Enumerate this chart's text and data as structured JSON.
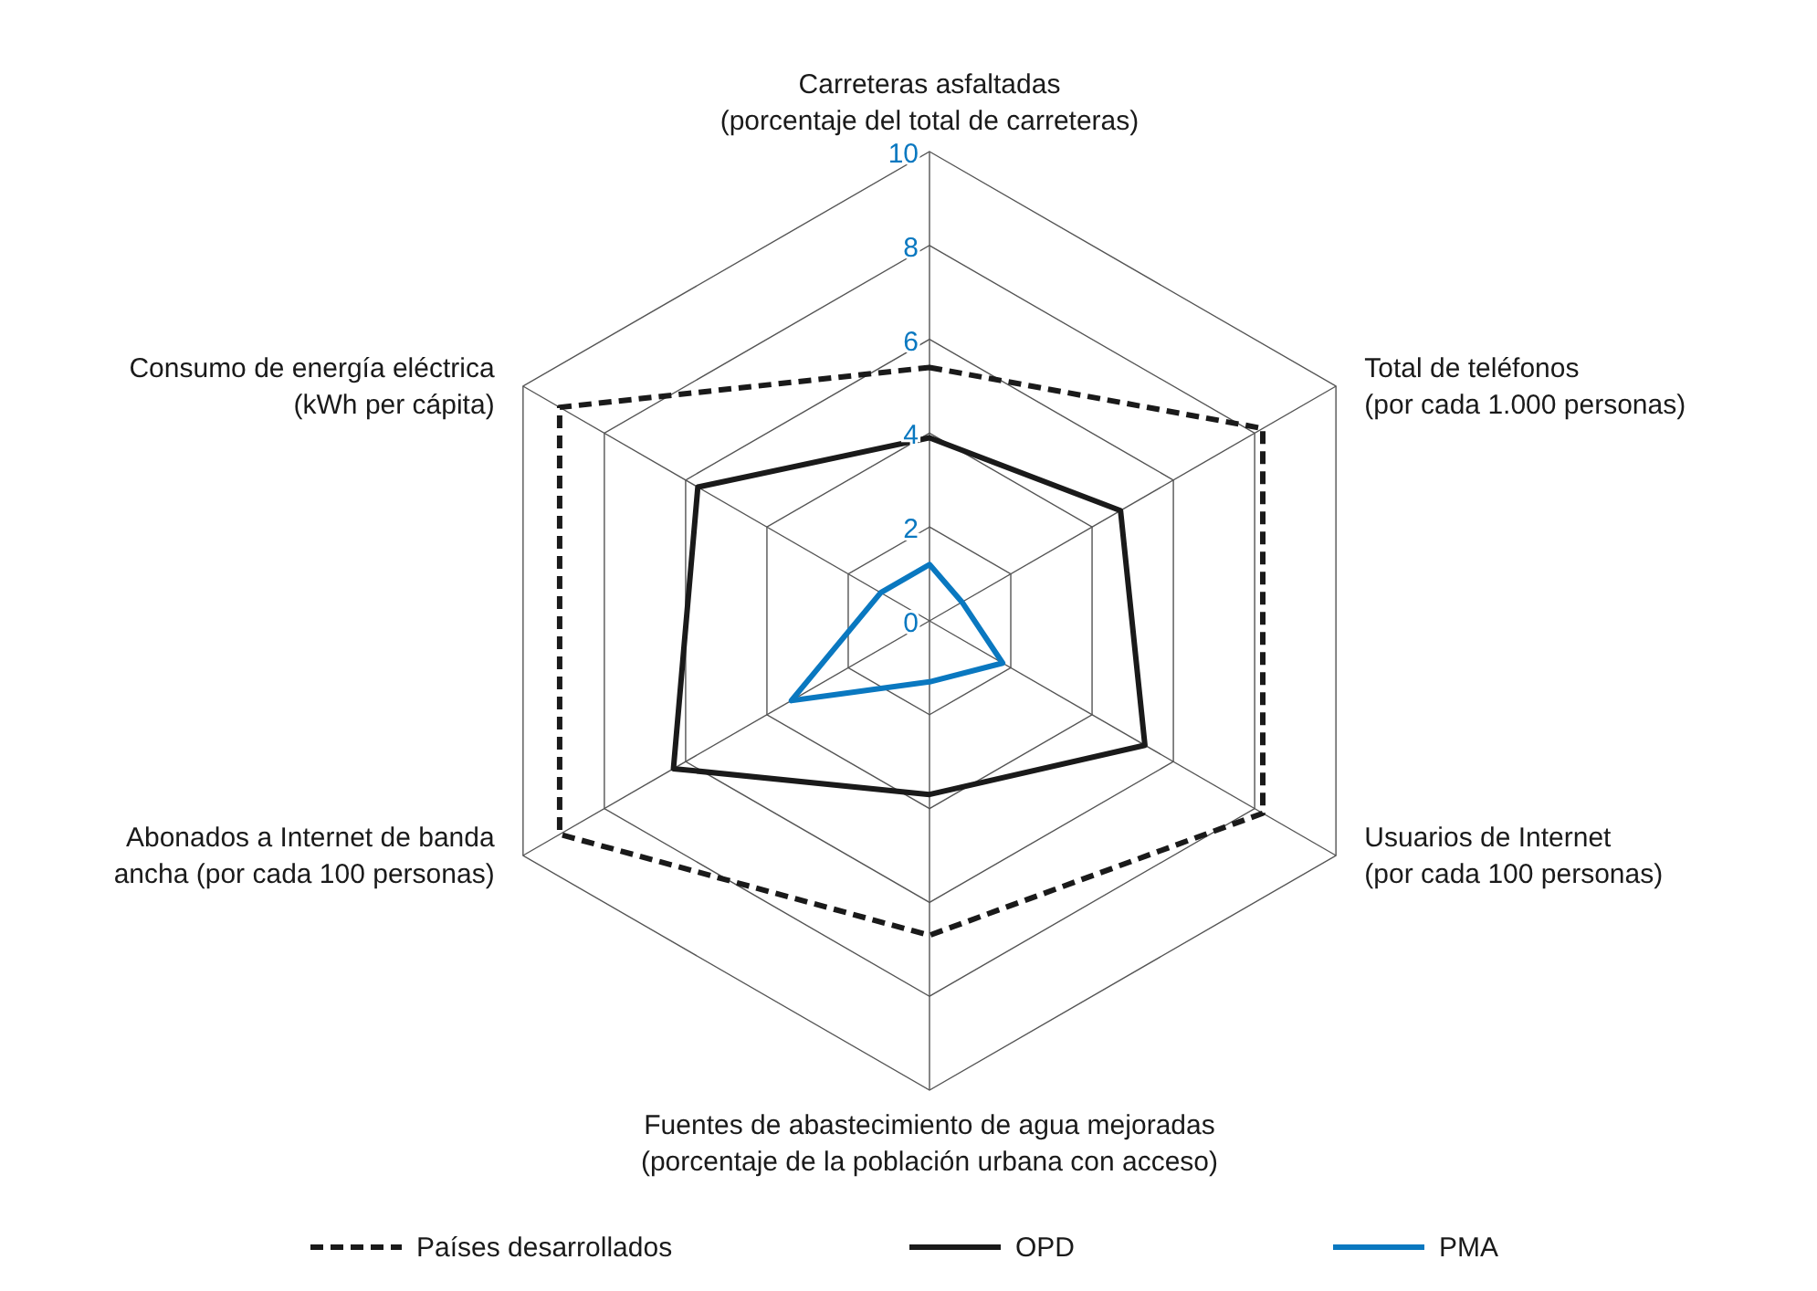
{
  "chart_data": {
    "type": "radar",
    "categories": [
      "Carreteras asfaltadas\n(porcentaje del total de carreteras)",
      "Total de teléfonos\n(por cada 1.000 personas)",
      "Usuarios de Internet\n(por cada 100 personas)",
      "Fuentes de abastecimiento de agua mejoradas\n(porcentaje de la población urbana con acceso)",
      "Abonados a Internet de banda\nancha (por cada 100 personas)",
      "Consumo de energía eléctrica\n(kWh per cápita)"
    ],
    "series": [
      {
        "name": "Países desarrollados",
        "color": "#1a1a1a",
        "line_style": "dashed",
        "values": [
          5.4,
          8.2,
          8.2,
          6.7,
          9.1,
          9.1
        ]
      },
      {
        "name": "OPD",
        "color": "#1a1a1a",
        "line_style": "solid",
        "values": [
          3.9,
          4.7,
          5.3,
          3.7,
          6.3,
          5.7
        ]
      },
      {
        "name": "PMA",
        "color": "#0a78c0",
        "line_style": "solid",
        "values": [
          1.2,
          0.8,
          1.8,
          1.3,
          3.4,
          1.2
        ]
      }
    ],
    "ylim": [
      0,
      10
    ],
    "yticks": [
      0,
      2,
      4,
      6,
      8,
      10
    ],
    "grid": true,
    "legend": "bottom"
  }
}
